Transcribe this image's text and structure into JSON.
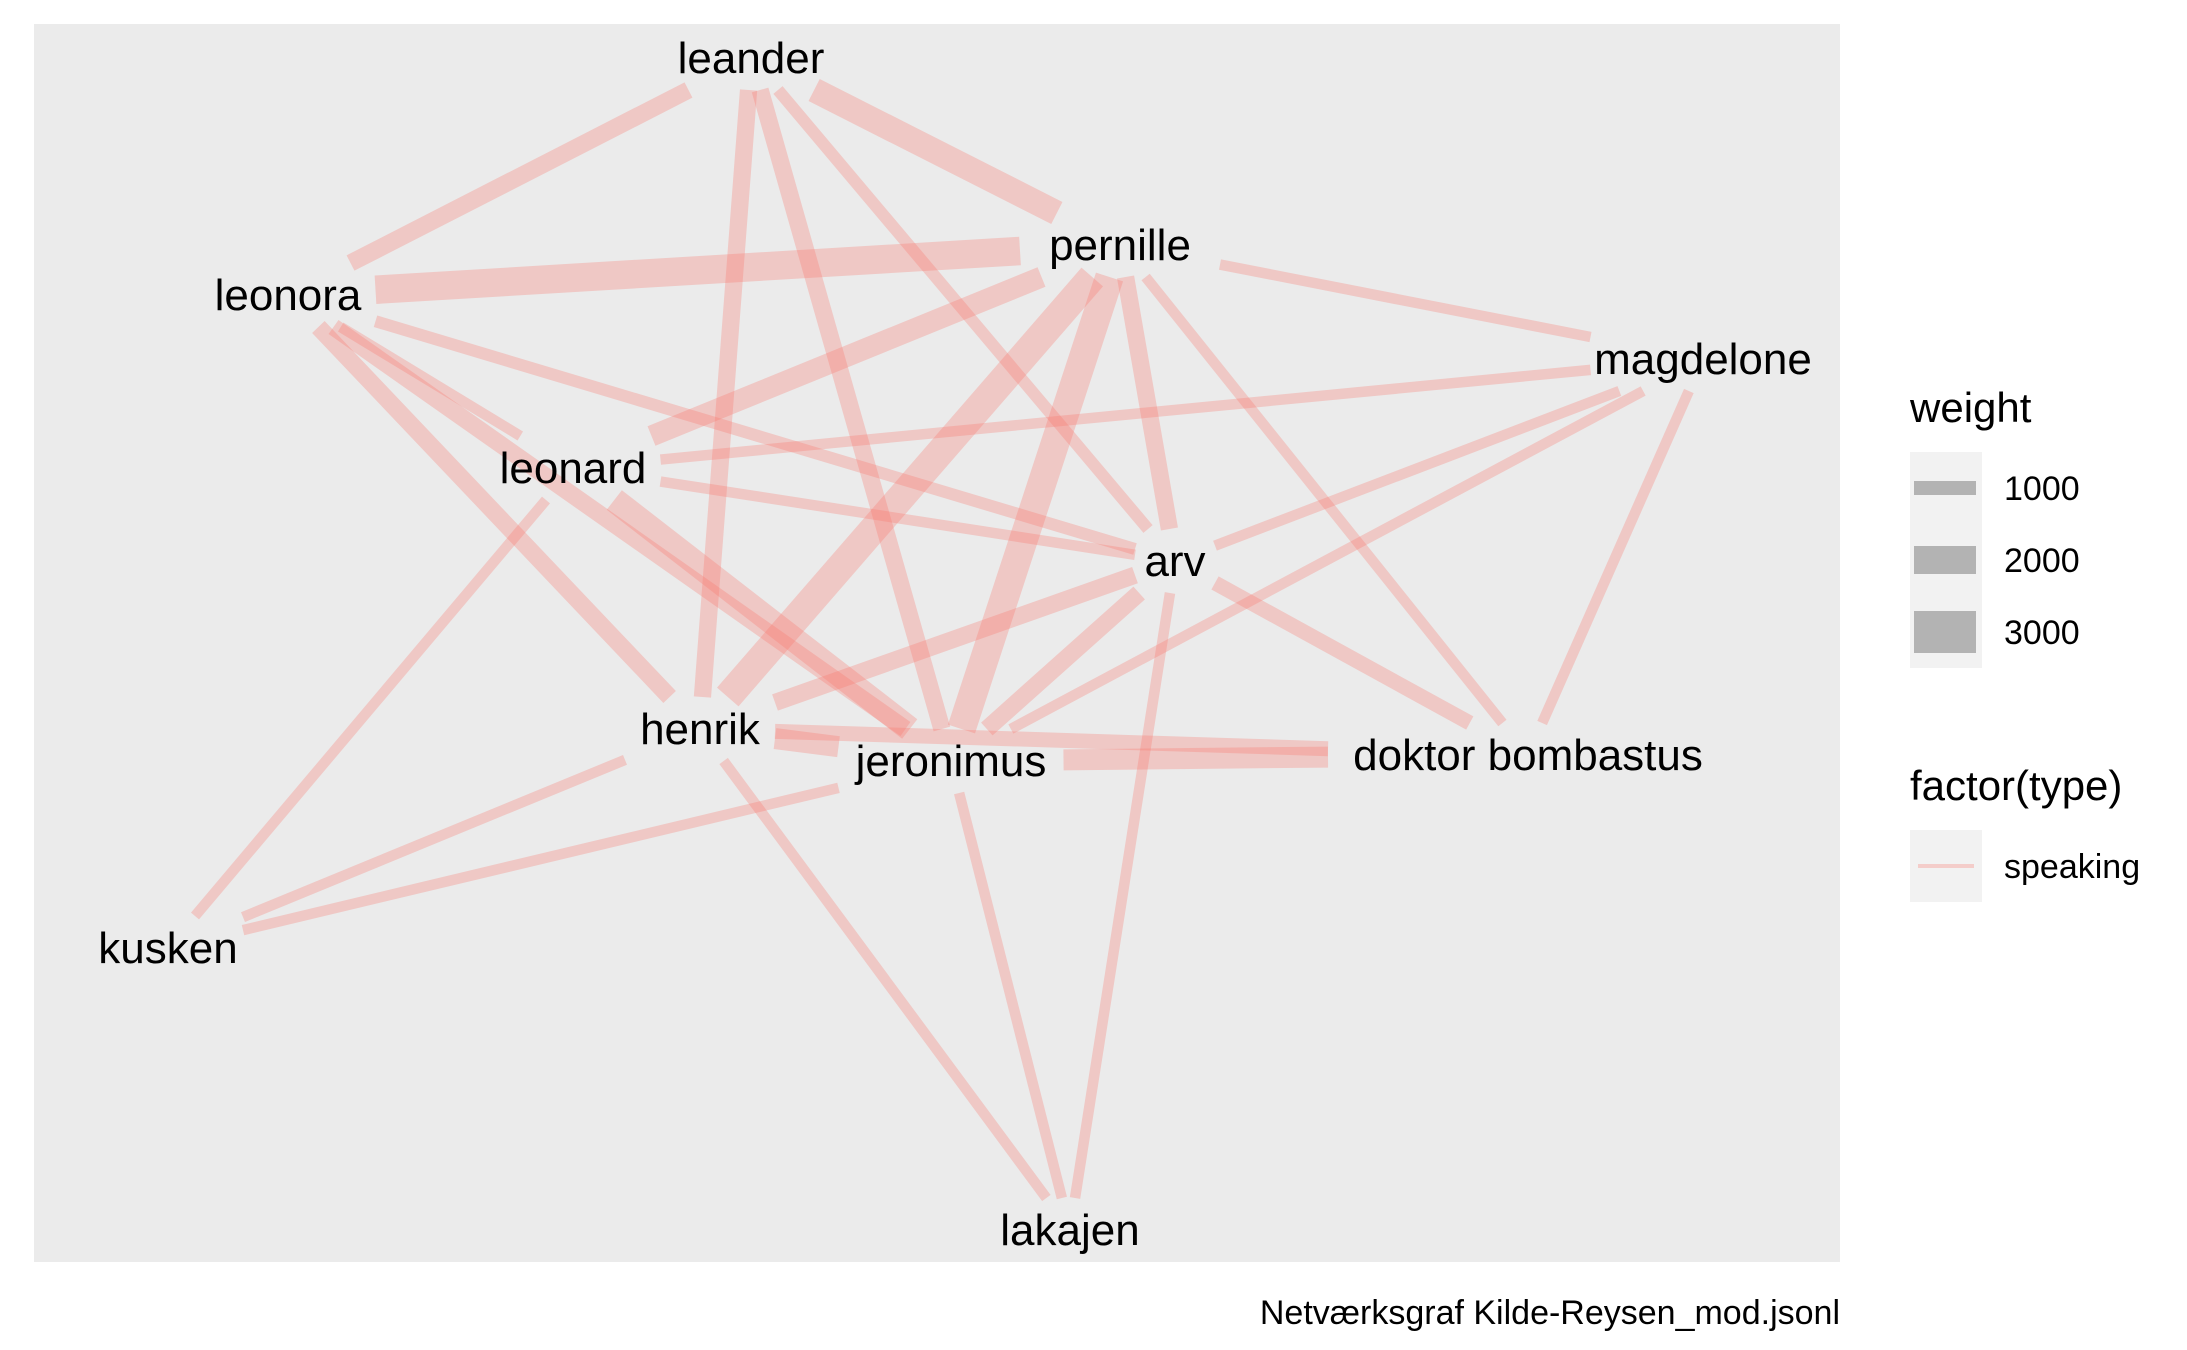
{
  "chart_data": {
    "type": "network",
    "caption": "Netværksgraf Kilde-Reysen_mod.jsonl",
    "edge_color": "#F8766D",
    "panel_background": "#EBEBEB",
    "nodes": [
      "leander",
      "pernille",
      "leonora",
      "magdelone",
      "leonard",
      "arv",
      "henrik",
      "jeronimus",
      "doktor bombastus",
      "kusken",
      "lakajen"
    ],
    "edges": [
      {
        "source": "leonora",
        "target": "pernille",
        "weight": 3000,
        "type": "speaking"
      },
      {
        "source": "henrik",
        "target": "pernille",
        "weight": 3000,
        "type": "speaking"
      },
      {
        "source": "jeronimus",
        "target": "pernille",
        "weight": 3000,
        "type": "speaking"
      },
      {
        "source": "leander",
        "target": "pernille",
        "weight": 2500,
        "type": "speaking"
      },
      {
        "source": "leonard",
        "target": "jeronimus",
        "weight": 2500,
        "type": "speaking"
      },
      {
        "source": "leonard",
        "target": "pernille",
        "weight": 2000,
        "type": "speaking"
      },
      {
        "source": "henrik",
        "target": "jeronimus",
        "weight": 2000,
        "type": "speaking"
      },
      {
        "source": "jeronimus",
        "target": "doktor bombastus",
        "weight": 2000,
        "type": "speaking"
      },
      {
        "source": "henrik",
        "target": "doktor bombastus",
        "weight": 1200,
        "type": "speaking"
      },
      {
        "source": "leander",
        "target": "leonora",
        "weight": 1500,
        "type": "speaking"
      },
      {
        "source": "leander",
        "target": "henrik",
        "weight": 1500,
        "type": "speaking"
      },
      {
        "source": "leonora",
        "target": "henrik",
        "weight": 1500,
        "type": "speaking"
      },
      {
        "source": "leonora",
        "target": "jeronimus",
        "weight": 1500,
        "type": "speaking"
      },
      {
        "source": "leander",
        "target": "jeronimus",
        "weight": 1500,
        "type": "speaking"
      },
      {
        "source": "pernille",
        "target": "arv",
        "weight": 1500,
        "type": "speaking"
      },
      {
        "source": "henrik",
        "target": "arv",
        "weight": 1500,
        "type": "speaking"
      },
      {
        "source": "jeronimus",
        "target": "arv",
        "weight": 1500,
        "type": "speaking"
      },
      {
        "source": "arv",
        "target": "doktor bombastus",
        "weight": 1200,
        "type": "speaking"
      },
      {
        "source": "leander",
        "target": "arv",
        "weight": 800,
        "type": "speaking"
      },
      {
        "source": "leonora",
        "target": "arv",
        "weight": 800,
        "type": "speaking"
      },
      {
        "source": "leonora",
        "target": "leonard",
        "weight": 600,
        "type": "speaking"
      },
      {
        "source": "leonard",
        "target": "arv",
        "weight": 600,
        "type": "speaking"
      },
      {
        "source": "leonard",
        "target": "magdelone",
        "weight": 600,
        "type": "speaking"
      },
      {
        "source": "pernille",
        "target": "magdelone",
        "weight": 600,
        "type": "speaking"
      },
      {
        "source": "pernille",
        "target": "doktor bombastus",
        "weight": 600,
        "type": "speaking"
      },
      {
        "source": "arv",
        "target": "magdelone",
        "weight": 600,
        "type": "speaking"
      },
      {
        "source": "jeronimus",
        "target": "magdelone",
        "weight": 600,
        "type": "speaking"
      },
      {
        "source": "magdelone",
        "target": "doktor bombastus",
        "weight": 600,
        "type": "speaking"
      },
      {
        "source": "leonard",
        "target": "kusken",
        "weight": 600,
        "type": "speaking"
      },
      {
        "source": "henrik",
        "target": "kusken",
        "weight": 600,
        "type": "speaking"
      },
      {
        "source": "jeronimus",
        "target": "kusken",
        "weight": 600,
        "type": "speaking"
      },
      {
        "source": "henrik",
        "target": "lakajen",
        "weight": 600,
        "type": "speaking"
      },
      {
        "source": "jeronimus",
        "target": "lakajen",
        "weight": 600,
        "type": "speaking"
      },
      {
        "source": "arv",
        "target": "lakajen",
        "weight": 600,
        "type": "speaking"
      }
    ],
    "legend": {
      "weight": {
        "title": "weight",
        "values": [
          1000,
          2000,
          3000
        ]
      },
      "type": {
        "title": "factor(type)",
        "values": [
          "speaking"
        ]
      }
    }
  }
}
